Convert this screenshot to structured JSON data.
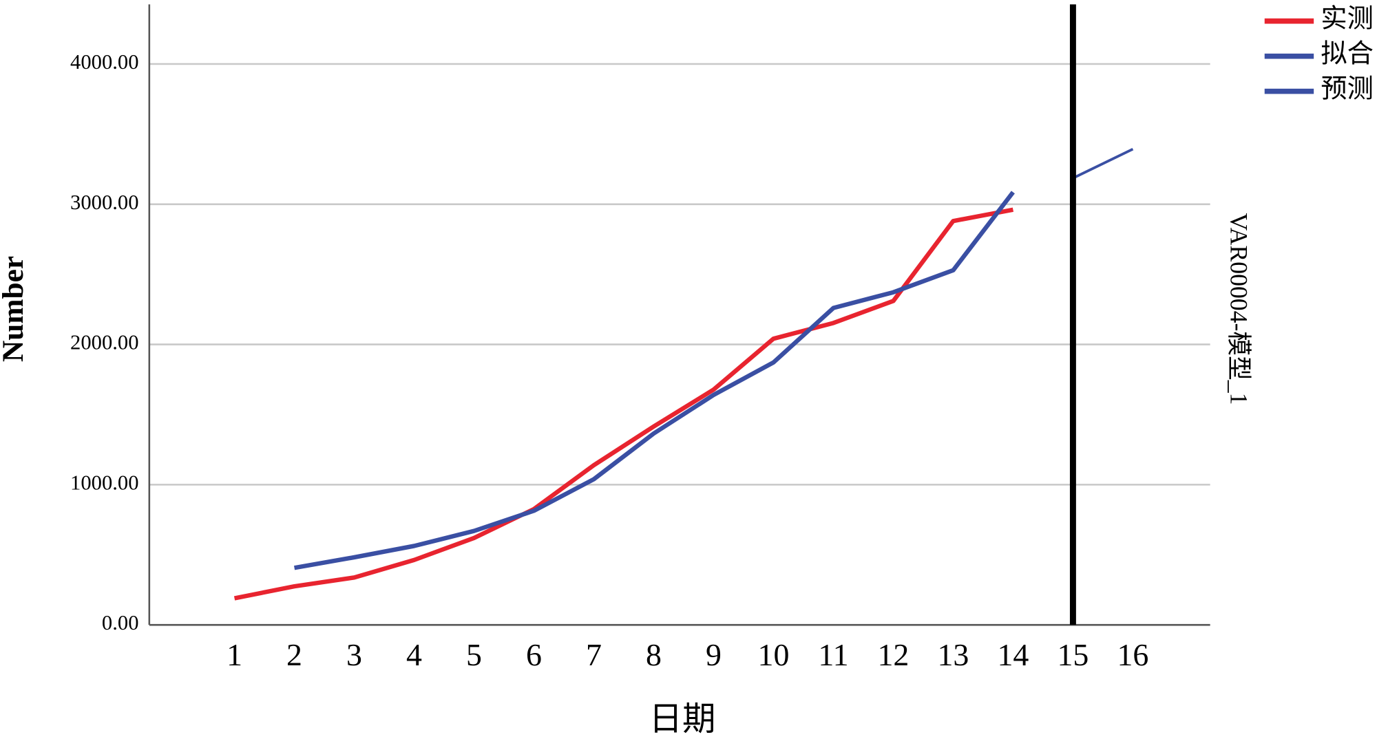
{
  "chart_data": {
    "type": "line",
    "xlabel": "日期",
    "ylabel": "Number",
    "categories": [
      "1",
      "2",
      "3",
      "4",
      "5",
      "6",
      "7",
      "8",
      "9",
      "10",
      "11",
      "12",
      "13",
      "14",
      "15",
      "16"
    ],
    "series": [
      {
        "name": "实测",
        "color": "#e8242f",
        "width": 5,
        "values": [
          190,
          275,
          338,
          463,
          620,
          826,
          1139,
          1415,
          1678,
          2041,
          2153,
          2310,
          2880,
          2961,
          null,
          null
        ]
      },
      {
        "name": "拟合",
        "color": "#3a4fa3",
        "width": 5,
        "values": [
          null,
          407,
          482,
          563,
          670,
          814,
          1039,
          1365,
          1640,
          1872,
          2260,
          2372,
          2529,
          3086,
          null,
          null
        ]
      },
      {
        "name": "预测",
        "color": "#3a4fa3",
        "width": 3,
        "values": [
          null,
          null,
          null,
          null,
          null,
          null,
          null,
          null,
          null,
          null,
          null,
          null,
          null,
          null,
          3186,
          3393
        ]
      }
    ],
    "ylim": [
      0,
      4425
    ],
    "yticks": [
      {
        "value": 0,
        "label": "0.00"
      },
      {
        "value": 1000,
        "label": "1000.00"
      },
      {
        "value": 2000,
        "label": "2000.00"
      },
      {
        "value": 3000,
        "label": "3000.00"
      },
      {
        "value": 4000,
        "label": "4000.00"
      }
    ],
    "grid": true,
    "legend": "top-right",
    "reference_line": {
      "category": "15",
      "label": "VAR00004-模型_1"
    }
  }
}
